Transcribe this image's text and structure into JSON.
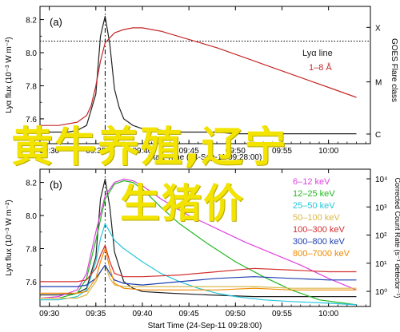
{
  "overlay": {
    "line1": "黄牛养殖,辽宁",
    "line2": "生猪价"
  },
  "colors": {
    "overlay_text": "#f2e400",
    "frame": "#000000",
    "panel_a_lya": "#222222",
    "panel_a_goes": "#c62828"
  },
  "chart_data": [
    {
      "type": "line",
      "panel_label": "(a)",
      "xlabel": "Start Time (24-Sep-11 09:28:00)",
      "x_ticks": [
        "09:30",
        "09:35",
        "09:40",
        "09:45",
        "09:50",
        "09:55",
        "10:00"
      ],
      "x_range_minutes": [
        9.473,
        10.05
      ],
      "ylabel": "Lyα flux (10⁻³ W m⁻²)",
      "ylim": [
        7.45,
        8.28
      ],
      "y_ticks": [
        "7.6",
        "7.8",
        "8.0",
        "8.2"
      ],
      "right_axis_label": "GOES Flare class",
      "right_ticks": [
        "X",
        "M",
        "C"
      ],
      "right_tick_fractions": [
        0.153,
        0.55,
        0.93
      ],
      "flare_peak_time": "09:36",
      "dotted_level": 8.07,
      "legend": [
        {
          "name": "Lyα line",
          "color": "#222222"
        },
        {
          "name": "1–8 Å",
          "color": "#c62828"
        }
      ],
      "series": [
        {
          "name": "Lyα line",
          "color": "#222222",
          "x": [
            "09:29",
            "09:30",
            "09:31",
            "09:32",
            "09:33",
            "09:34",
            "09:35",
            "09:35.5",
            "09:36",
            "09:36.5",
            "09:37",
            "09:37.5",
            "09:38",
            "09:39",
            "09:40",
            "09:42",
            "09:44",
            "09:46",
            "09:48",
            "09:50",
            "09:52",
            "09:54",
            "09:56",
            "09:58",
            "10:00",
            "10:03"
          ],
          "values": [
            7.52,
            7.52,
            7.52,
            7.52,
            7.53,
            7.56,
            7.75,
            8.1,
            8.22,
            8.05,
            7.78,
            7.67,
            7.6,
            7.56,
            7.54,
            7.53,
            7.52,
            7.52,
            7.52,
            7.51,
            7.51,
            7.51,
            7.51,
            7.51,
            7.51,
            7.51
          ]
        },
        {
          "name": "1–8 Å",
          "color": "#c62828",
          "x": [
            "09:29",
            "09:31",
            "09:33",
            "09:34",
            "09:34.5",
            "09:35",
            "09:35.5",
            "09:36",
            "09:37",
            "09:38",
            "09:39",
            "09:40",
            "09:42",
            "09:45",
            "09:48",
            "09:51",
            "09:54",
            "09:57",
            "10:00",
            "10:03"
          ],
          "values": [
            7.56,
            7.56,
            7.58,
            7.62,
            7.68,
            7.8,
            7.95,
            8.06,
            8.12,
            8.14,
            8.15,
            8.15,
            8.13,
            8.08,
            8.03,
            7.97,
            7.91,
            7.85,
            7.79,
            7.73
          ]
        }
      ]
    },
    {
      "type": "line",
      "panel_label": "(b)",
      "xlabel": "Start Time (24-Sep-11 09:28:00)",
      "x_ticks": [
        "09:30",
        "09:35",
        "09:40",
        "09:45",
        "09:50",
        "09:55",
        "10:00"
      ],
      "ylabel": "Lyα flux (10⁻³ W m⁻²)",
      "ylim": [
        7.45,
        8.28
      ],
      "y_ticks": [
        "7.6",
        "7.8",
        "8.0",
        "8.2"
      ],
      "right_axis_label": "Corrected Count Rate (s⁻¹ detector⁻¹)",
      "right_ticks": [
        "10⁴",
        "10³",
        "10²",
        "10¹",
        "10⁰"
      ],
      "right_tick_fractions": [
        0.07,
        0.275,
        0.48,
        0.685,
        0.89
      ],
      "flare_peak_time": "09:36",
      "legend": [
        {
          "name": "6–12 keV",
          "color": "#e040e0"
        },
        {
          "name": "12–25 keV",
          "color": "#22b822"
        },
        {
          "name": "25–50 keV",
          "color": "#26c6da"
        },
        {
          "name": "50–100 keV",
          "color": "#d9b84a"
        },
        {
          "name": "100–300 keV",
          "color": "#d32f2f"
        },
        {
          "name": "300–800 keV",
          "color": "#1e3fb0"
        },
        {
          "name": "800–7000 keV",
          "color": "#ef8a00"
        }
      ],
      "series": [
        {
          "name": "Lyα line",
          "color": "#222222",
          "x": [
            "09:29",
            "09:31",
            "09:33",
            "09:34",
            "09:35",
            "09:35.5",
            "09:36",
            "09:36.5",
            "09:37",
            "09:38",
            "09:39",
            "09:40",
            "09:43",
            "09:47",
            "09:52",
            "09:57",
            "10:03"
          ],
          "values": [
            7.52,
            7.52,
            7.53,
            7.56,
            7.75,
            8.1,
            8.22,
            8.05,
            7.78,
            7.6,
            7.56,
            7.54,
            7.53,
            7.52,
            7.51,
            7.51,
            7.51
          ]
        },
        {
          "name": "6–12 keV",
          "color": "#e040e0",
          "x": [
            "09:29",
            "09:31",
            "09:33",
            "09:34",
            "09:35",
            "09:36",
            "09:37",
            "09:38",
            "09:39",
            "09:40",
            "09:42",
            "09:45",
            "09:48",
            "09:51",
            "09:54",
            "09:57",
            "10:00",
            "10:03"
          ],
          "values": [
            7.5,
            7.51,
            7.55,
            7.65,
            7.9,
            8.12,
            8.2,
            8.22,
            8.21,
            8.18,
            8.1,
            8.0,
            7.92,
            7.84,
            7.77,
            7.7,
            7.62,
            7.55
          ]
        },
        {
          "name": "12–25 keV",
          "color": "#22b822",
          "x": [
            "09:29",
            "09:31",
            "09:33",
            "09:34",
            "09:35",
            "09:36",
            "09:37",
            "09:38",
            "09:39",
            "09:40",
            "09:42",
            "09:44",
            "09:47",
            "09:50",
            "09:53",
            "09:56",
            "09:59",
            "10:03"
          ],
          "values": [
            7.5,
            7.5,
            7.53,
            7.62,
            7.85,
            8.1,
            8.19,
            8.21,
            8.2,
            8.16,
            8.05,
            7.95,
            7.83,
            7.72,
            7.63,
            7.55,
            7.49,
            7.46
          ]
        },
        {
          "name": "25–50 keV",
          "color": "#26c6da",
          "x": [
            "09:29",
            "09:31",
            "09:33",
            "09:34",
            "09:35",
            "09:35.5",
            "09:36",
            "09:36.5",
            "09:37",
            "09:38",
            "09:40",
            "09:42",
            "09:44",
            "09:46",
            "09:48",
            "09:50",
            "09:53",
            "09:56",
            "10:00",
            "10:03"
          ],
          "values": [
            7.49,
            7.49,
            7.51,
            7.55,
            7.72,
            7.86,
            7.95,
            7.9,
            7.85,
            7.8,
            7.72,
            7.65,
            7.6,
            7.56,
            7.53,
            7.51,
            7.49,
            7.48,
            7.47,
            7.46
          ]
        },
        {
          "name": "50–100 keV",
          "color": "#d9b84a",
          "x": [
            "09:29",
            "09:31",
            "09:33",
            "09:34",
            "09:35",
            "09:35.5",
            "09:36",
            "09:36.5",
            "09:37",
            "09:38",
            "09:40",
            "09:44",
            "09:48",
            "09:52",
            "09:56",
            "10:00",
            "10:03"
          ],
          "values": [
            7.5,
            7.5,
            7.5,
            7.52,
            7.6,
            7.66,
            7.7,
            7.62,
            7.58,
            7.57,
            7.57,
            7.57,
            7.57,
            7.57,
            7.56,
            7.56,
            7.56
          ]
        },
        {
          "name": "100–300 keV",
          "color": "#d32f2f",
          "x": [
            "09:29",
            "09:31",
            "09:33",
            "09:34",
            "09:35",
            "09:35.5",
            "09:36",
            "09:36.5",
            "09:37",
            "09:38",
            "09:40",
            "09:44",
            "09:48",
            "09:52",
            "09:56",
            "10:00",
            "10:03"
          ],
          "values": [
            7.6,
            7.6,
            7.6,
            7.61,
            7.68,
            7.76,
            7.82,
            7.72,
            7.65,
            7.63,
            7.63,
            7.64,
            7.66,
            7.68,
            7.67,
            7.66,
            7.66
          ]
        },
        {
          "name": "300–800 keV",
          "color": "#1e3fb0",
          "x": [
            "09:29",
            "09:31",
            "09:33",
            "09:34",
            "09:35",
            "09:35.5",
            "09:36",
            "09:36.5",
            "09:37",
            "09:38",
            "09:40",
            "09:44",
            "09:48",
            "09:52",
            "09:56",
            "10:00",
            "10:03"
          ],
          "values": [
            7.57,
            7.57,
            7.57,
            7.58,
            7.62,
            7.66,
            7.7,
            7.65,
            7.61,
            7.59,
            7.58,
            7.6,
            7.62,
            7.63,
            7.62,
            7.61,
            7.61
          ]
        },
        {
          "name": "800–7000 keV",
          "color": "#ef8a00",
          "x": [
            "09:29",
            "09:31",
            "09:33",
            "09:34",
            "09:35",
            "09:35.5",
            "09:36",
            "09:36.5",
            "09:37",
            "09:38",
            "09:40",
            "09:44",
            "09:48",
            "09:52",
            "09:56",
            "10:00",
            "10:03"
          ],
          "values": [
            7.53,
            7.53,
            7.53,
            7.54,
            7.62,
            7.72,
            7.8,
            7.68,
            7.59,
            7.56,
            7.55,
            7.55,
            7.55,
            7.56,
            7.55,
            7.55,
            7.55
          ]
        }
      ]
    }
  ]
}
